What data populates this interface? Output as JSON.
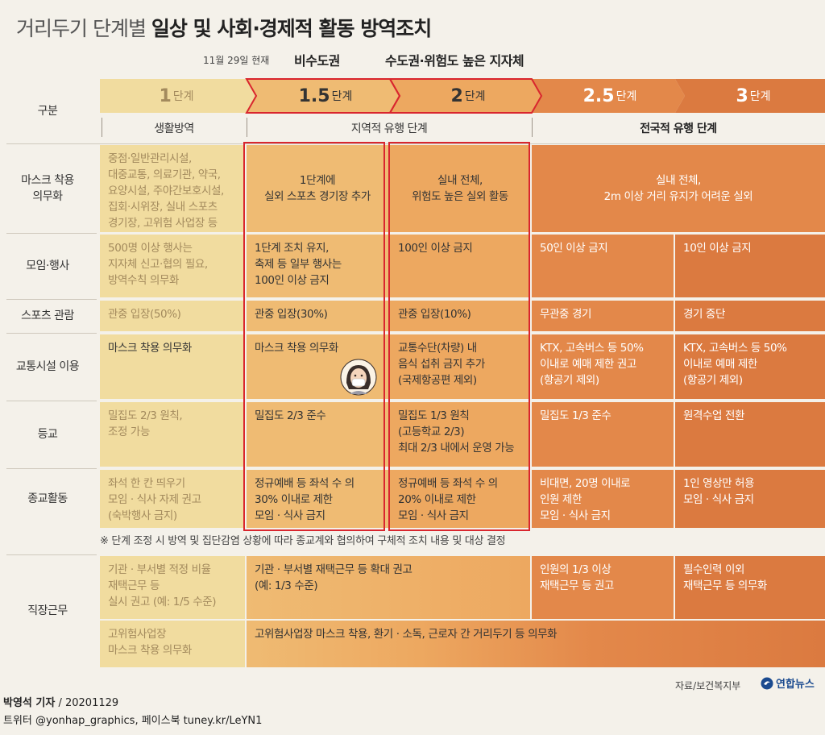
{
  "title_prefix": "거리두기 단계별 ",
  "title_bold": "일상 및 사회·경제적 활동 방역조치",
  "header": {
    "current_date_note": "11월 29일 현재",
    "label_15": "비수도권",
    "label_2": "수도권·위험도 높은 지자체"
  },
  "column_label": "구분",
  "stages": [
    {
      "num": "1",
      "unit": "단계",
      "color": "#f1dc9f"
    },
    {
      "num": "1.5",
      "unit": "단계",
      "color": "#efbb73"
    },
    {
      "num": "2",
      "unit": "단계",
      "color": "#eda860"
    },
    {
      "num": "2.5",
      "unit": "단계",
      "color": "#e3884a"
    },
    {
      "num": "3",
      "unit": "단계",
      "color": "#db7a40"
    }
  ],
  "phases": {
    "p1": "생활방역",
    "p2": "지역적 유행 단계",
    "p3": "전국적 유행 단계"
  },
  "rows": {
    "mask": {
      "label": "마스크 착용\n의무화",
      "s1": "중점·일반관리시설,\n대중교통, 의료기관, 약국,\n요양시설, 주야간보호시설,\n집회·시위장, 실내 스포츠\n경기장, 고위험 사업장 등",
      "s15": "1단계에\n실외 스포츠 경기장 추가",
      "s2": "실내 전체,\n위험도 높은 실외 활동",
      "s25_3": "실내 전체,\n2m 이상 거리 유지가 어려운 실외"
    },
    "gathering": {
      "label": "모임·행사",
      "s1": "500명 이상 행사는\n지자체 신고·협의 필요,\n방역수칙 의무화",
      "s15": "1단계 조치 유지,\n축제 등 일부 행사는\n100인 이상 금지",
      "s2": "100인 이상 금지",
      "s25": "50인 이상 금지",
      "s3": "10인 이상 금지"
    },
    "sports": {
      "label": "스포츠 관람",
      "s1": "관중 입장(50%)",
      "s15": "관중 입장(30%)",
      "s2": "관중 입장(10%)",
      "s25": "무관중 경기",
      "s3": "경기 중단"
    },
    "transport": {
      "label": "교통시설 이용",
      "s1_15": "마스크 착용 의무화",
      "s15_dup": "마스크 착용 의무화",
      "s2": "교통수단(차량) 내\n음식 섭취 금지 추가\n(국제항공편 제외)",
      "s25": "KTX, 고속버스 등 50%\n이내로 예매 제한 권고\n(항공기 제외)",
      "s3": "KTX, 고속버스 등 50%\n이내로 예매 제한\n(항공기 제외)"
    },
    "school": {
      "label": "등교",
      "s1": "밀집도 2/3 원칙,\n조정 가능",
      "s15": "밀집도 2/3 준수",
      "s2": "밀집도 1/3 원칙\n(고등학교 2/3)\n최대 2/3 내에서 운영 가능",
      "s25": "밀집도 1/3 준수",
      "s3": "원격수업 전환"
    },
    "religion": {
      "label": "종교활동",
      "s1": "좌석 한 칸 띄우기\n모임 · 식사 자제 권고\n(숙박행사 금지)",
      "s15": "정규예배 등 좌석 수 의\n30% 이내로 제한\n모임 · 식사 금지",
      "s2": "정규예배 등 좌석 수 의\n20% 이내로 제한\n모임 · 식사 금지",
      "s25": "비대면, 20명 이내로\n인원 제한\n모임 · 식사 금지",
      "s3": "1인 영상만 허용\n모임 · 식사 금지"
    },
    "footnote": "※ 단계 조정 시 방역 및 집단감염 상황에 따라 종교계와 협의하여 구체적 조치 내용 및 대상 결정",
    "work": {
      "label": "직장근무",
      "s1": "기관 · 부서별 적정 비율\n재택근무 등\n실시 권고 (예: 1/5 수준)",
      "s15_2": "기관 · 부서별 재택근무 등 확대 권고\n(예: 1/3 수준)",
      "s25": "인원의 1/3 이상\n재택근무 등 권고",
      "s3": "필수인력 이외\n재택근무 등 의무화",
      "s1b": "고위험사업장\n마스크 착용 의무화",
      "s15_3b": "고위험사업장 마스크 착용, 환기 · 소독, 근로자 간 거리두기 등 의무화"
    }
  },
  "source": "자료/보건복지부",
  "logo": "연합뉴스",
  "credit": {
    "reporter": "박영석 기자",
    "date": "20201129",
    "social": "트위터 @yonhap_graphics, 페이스북 tuney.kr/LeYN1"
  }
}
